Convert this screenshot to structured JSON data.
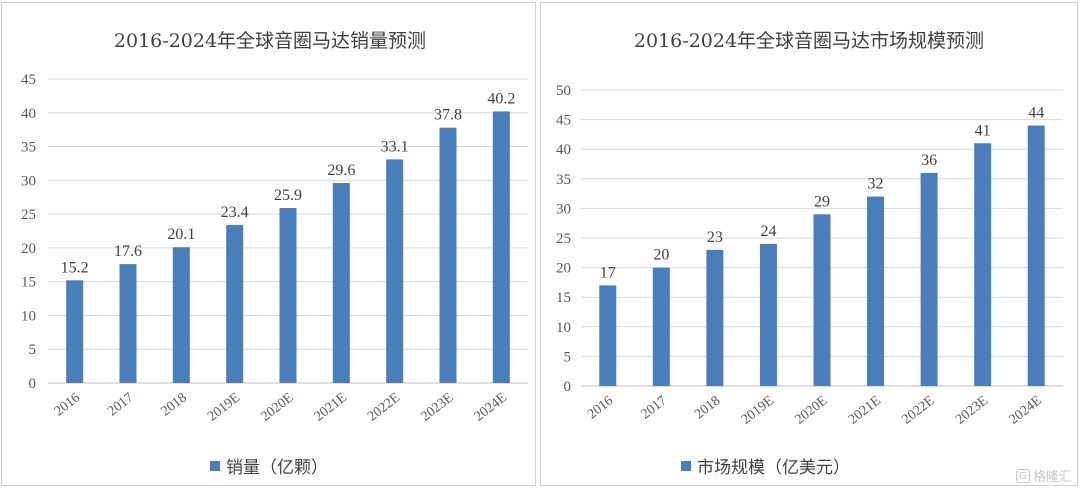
{
  "chart_data": [
    {
      "type": "bar",
      "title": "2016-2024年全球音圈马达销量预测",
      "categories": [
        "2016",
        "2017",
        "2018",
        "2019E",
        "2020E",
        "2021E",
        "2022E",
        "2023E",
        "2024E"
      ],
      "series": [
        {
          "name": "销量（亿颗）",
          "values": [
            15.2,
            17.6,
            20.1,
            23.4,
            25.9,
            29.6,
            33.1,
            37.8,
            40.2
          ]
        }
      ],
      "value_labels": [
        "15.2",
        "17.6",
        "20.1",
        "23.4",
        "25.9",
        "29.6",
        "33.1",
        "37.8",
        "40.2"
      ],
      "ylim": [
        0,
        45
      ],
      "yticks": [
        "0",
        "5",
        "10",
        "15",
        "20",
        "25",
        "30",
        "35",
        "40",
        "45"
      ],
      "xlabel": "",
      "ylabel": "",
      "grid": true,
      "legend_position": "bottom",
      "bar_color": "#4a7ebb"
    },
    {
      "type": "bar",
      "title": "2016-2024年全球音圈马达市场规模预测",
      "categories": [
        "2016",
        "2017",
        "2018",
        "2019E",
        "2020E",
        "2021E",
        "2022E",
        "2023E",
        "2024E"
      ],
      "series": [
        {
          "name": "市场规模（亿美元）",
          "values": [
            17,
            20,
            23,
            24,
            29,
            32,
            36,
            41,
            44
          ]
        }
      ],
      "value_labels": [
        "17",
        "20",
        "23",
        "24",
        "29",
        "32",
        "36",
        "41",
        "44"
      ],
      "ylim": [
        0,
        50
      ],
      "yticks": [
        "0",
        "5",
        "10",
        "15",
        "20",
        "25",
        "30",
        "35",
        "40",
        "45",
        "50"
      ],
      "xlabel": "",
      "ylabel": "",
      "grid": true,
      "legend_position": "bottom",
      "bar_color": "#4a7ebb"
    }
  ],
  "watermark": {
    "logo": "G",
    "text": "格隆汇"
  }
}
